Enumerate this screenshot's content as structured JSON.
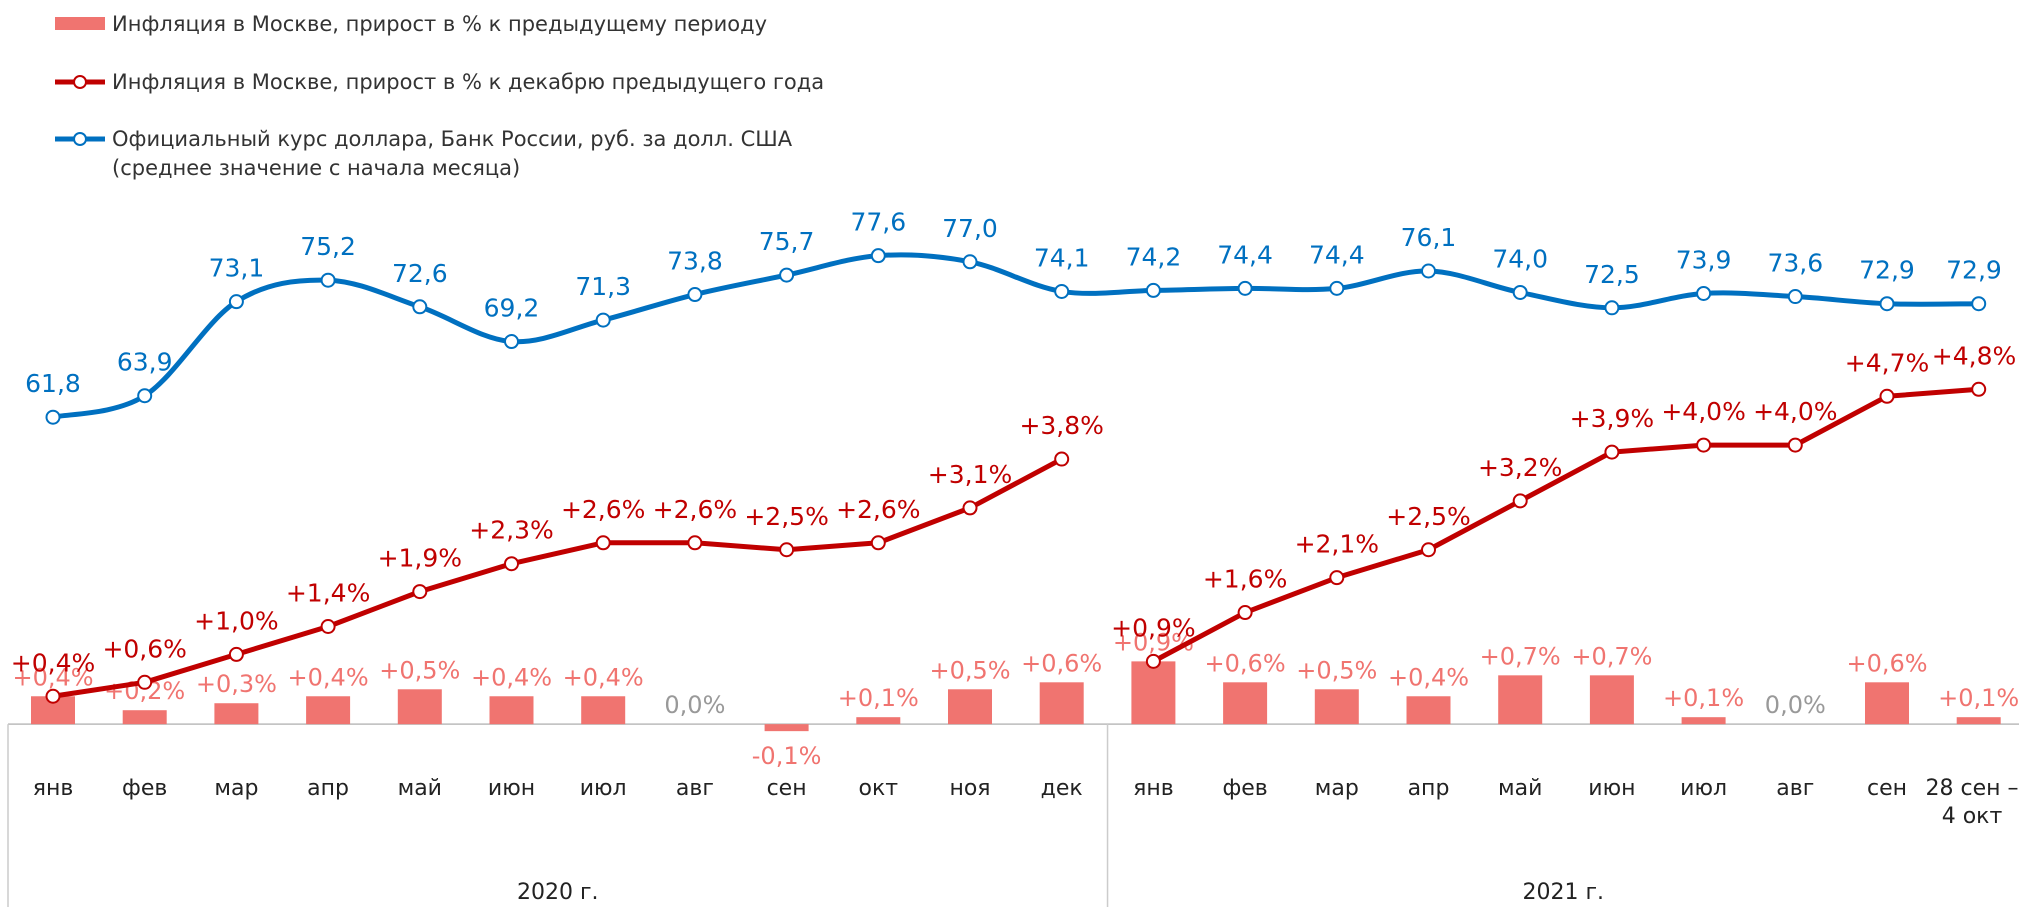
{
  "chart_data": {
    "type": "combo",
    "groups": [
      {
        "label": "2020 г.",
        "categories": [
          "янв",
          "фев",
          "мар",
          "апр",
          "май",
          "июн",
          "июл",
          "авг",
          "сен",
          "окт",
          "ноя",
          "дек"
        ]
      },
      {
        "label": "2021 г.",
        "categories": [
          "янв",
          "фев",
          "мар",
          "апр",
          "май",
          "июн",
          "июл",
          "авг",
          "сен",
          "28 сен –\n4 окт"
        ]
      }
    ],
    "ylim": [
      -0.7,
      7.8
    ],
    "y2lim": [
      27,
      85
    ],
    "series": [
      {
        "name": "Инфляция в Москве, прирост в % к предыдущему периоду",
        "type": "bar",
        "color": "#f07470",
        "values": [
          0.4,
          0.2,
          0.3,
          0.4,
          0.5,
          0.4,
          0.4,
          0.0,
          -0.1,
          0.1,
          0.5,
          0.6,
          0.9,
          0.6,
          0.5,
          0.4,
          0.7,
          0.7,
          0.1,
          0.0,
          0.6,
          0.1
        ],
        "value_labels": [
          "+0,4%",
          "+0,2%",
          "+0,3%",
          "+0,4%",
          "+0,5%",
          "+0,4%",
          "+0,4%",
          "0,0%",
          "-0,1%",
          "+0,1%",
          "+0,5%",
          "+0,6%",
          "+0,9%",
          "+0,6%",
          "+0,5%",
          "+0,4%",
          "+0,7%",
          "+0,7%",
          "+0,1%",
          "0,0%",
          "+0,6%",
          "+0,1%"
        ]
      },
      {
        "name": "Инфляция в Москве, прирост в % к декабрю предыдущего года",
        "type": "line",
        "color": "#c00000",
        "values": [
          0.4,
          0.6,
          1.0,
          1.4,
          1.9,
          2.3,
          2.6,
          2.6,
          2.5,
          2.6,
          3.1,
          3.8,
          0.9,
          1.6,
          2.1,
          2.5,
          3.2,
          3.9,
          4.0,
          4.0,
          4.7,
          4.8
        ],
        "value_labels": [
          "+0,4%",
          "+0,6%",
          "+1,0%",
          "+1,4%",
          "+1,9%",
          "+2,3%",
          "+2,6%",
          "+2,6%",
          "+2,5%",
          "+2,6%",
          "+3,1%",
          "+3,8%",
          "+0,9%",
          "+1,6%",
          "+2,1%",
          "+2,5%",
          "+3,2%",
          "+3,9%",
          "+4,0%",
          "+4,0%",
          "+4,7%",
          "+4,8%"
        ]
      },
      {
        "name": "Официальный курс доллара, Банк России, руб. за долл. США\n(среднее значение с начала месяца)",
        "type": "line",
        "axis": "y2",
        "smooth": true,
        "color": "#0070c0",
        "values": [
          61.8,
          63.9,
          73.1,
          75.2,
          72.6,
          69.2,
          71.3,
          73.8,
          75.7,
          77.6,
          77.0,
          74.1,
          74.2,
          74.4,
          74.4,
          76.1,
          74.0,
          72.5,
          73.9,
          73.6,
          72.9,
          72.9
        ],
        "value_labels": [
          "61,8",
          "63,9",
          "73,1",
          "75,2",
          "72,6",
          "69,2",
          "71,3",
          "73,8",
          "75,7",
          "77,6",
          "77,0",
          "74,1",
          "74,2",
          "74,4",
          "74,4",
          "76,1",
          "74,0",
          "72,5",
          "73,9",
          "73,6",
          "72,9",
          "72,9"
        ]
      }
    ]
  }
}
